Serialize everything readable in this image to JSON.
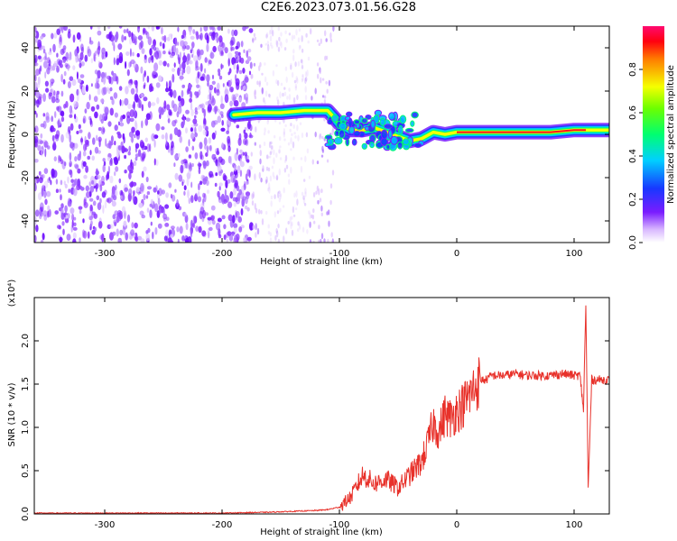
{
  "title": "C2E6.2023.073.01.56.G28",
  "chart_data": [
    {
      "type": "heatmap",
      "xlabel": "Height of straight line (km)",
      "ylabel": "Frequency (Hz)",
      "xlim": [
        -360,
        130
      ],
      "ylim": [
        -50,
        50
      ],
      "x_ticks": [
        -300,
        -200,
        -100,
        0,
        100
      ],
      "y_ticks": [
        -40,
        -20,
        0,
        20,
        40
      ],
      "colorbar": {
        "label": "Normalized spectral amplitude",
        "range": [
          0.0,
          1.0
        ],
        "ticks": [
          0.0,
          0.2,
          0.4,
          0.6,
          0.8
        ]
      },
      "ridge": [
        {
          "x": -190,
          "y": 9
        },
        {
          "x": -170,
          "y": 10
        },
        {
          "x": -150,
          "y": 10
        },
        {
          "x": -130,
          "y": 11
        },
        {
          "x": -110,
          "y": 11
        },
        {
          "x": -100,
          "y": 5
        },
        {
          "x": -90,
          "y": 2
        },
        {
          "x": -80,
          "y": 2
        },
        {
          "x": -70,
          "y": 3
        },
        {
          "x": -60,
          "y": 1
        },
        {
          "x": -50,
          "y": -1
        },
        {
          "x": -40,
          "y": -3
        },
        {
          "x": -30,
          "y": -2
        },
        {
          "x": -20,
          "y": 1
        },
        {
          "x": -10,
          "y": 0
        },
        {
          "x": 0,
          "y": 1
        },
        {
          "x": 20,
          "y": 1
        },
        {
          "x": 40,
          "y": 1
        },
        {
          "x": 60,
          "y": 1
        },
        {
          "x": 80,
          "y": 1
        },
        {
          "x": 100,
          "y": 2
        },
        {
          "x": 110,
          "y": 2
        },
        {
          "x": 130,
          "y": 2
        }
      ]
    },
    {
      "type": "line",
      "xlabel": "Height of straight line (km)",
      "ylabel": "SNR (10 * v/v)",
      "y_multiplier": "(x10⁴)",
      "xlim": [
        -360,
        130
      ],
      "ylim": [
        0,
        2.5
      ],
      "x_ticks": [
        -300,
        -200,
        -100,
        0,
        100
      ],
      "y_ticks": [
        0.0,
        0.5,
        1.0,
        1.5,
        2.0
      ],
      "series": [
        {
          "color": "#e8312a",
          "x": [
            -360,
            -300,
            -250,
            -200,
            -160,
            -140,
            -120,
            -110,
            -100,
            -90,
            -80,
            -70,
            -60,
            -50,
            -40,
            -30,
            -25,
            -20,
            -15,
            -10,
            -5,
            0,
            5,
            10,
            15,
            20,
            25,
            30,
            40,
            50,
            60,
            70,
            80,
            90,
            100,
            105,
            108,
            110,
            112,
            115,
            120,
            130
          ],
          "y": [
            0.01,
            0.01,
            0.01,
            0.01,
            0.02,
            0.03,
            0.04,
            0.05,
            0.08,
            0.2,
            0.45,
            0.35,
            0.4,
            0.3,
            0.45,
            0.6,
            0.8,
            1.05,
            0.95,
            1.15,
            1.1,
            1.2,
            1.25,
            1.35,
            1.45,
            1.55,
            1.55,
            1.6,
            1.6,
            1.62,
            1.6,
            1.6,
            1.6,
            1.62,
            1.6,
            1.6,
            1.2,
            2.45,
            0.3,
            1.55,
            1.55,
            1.55
          ]
        }
      ]
    }
  ]
}
